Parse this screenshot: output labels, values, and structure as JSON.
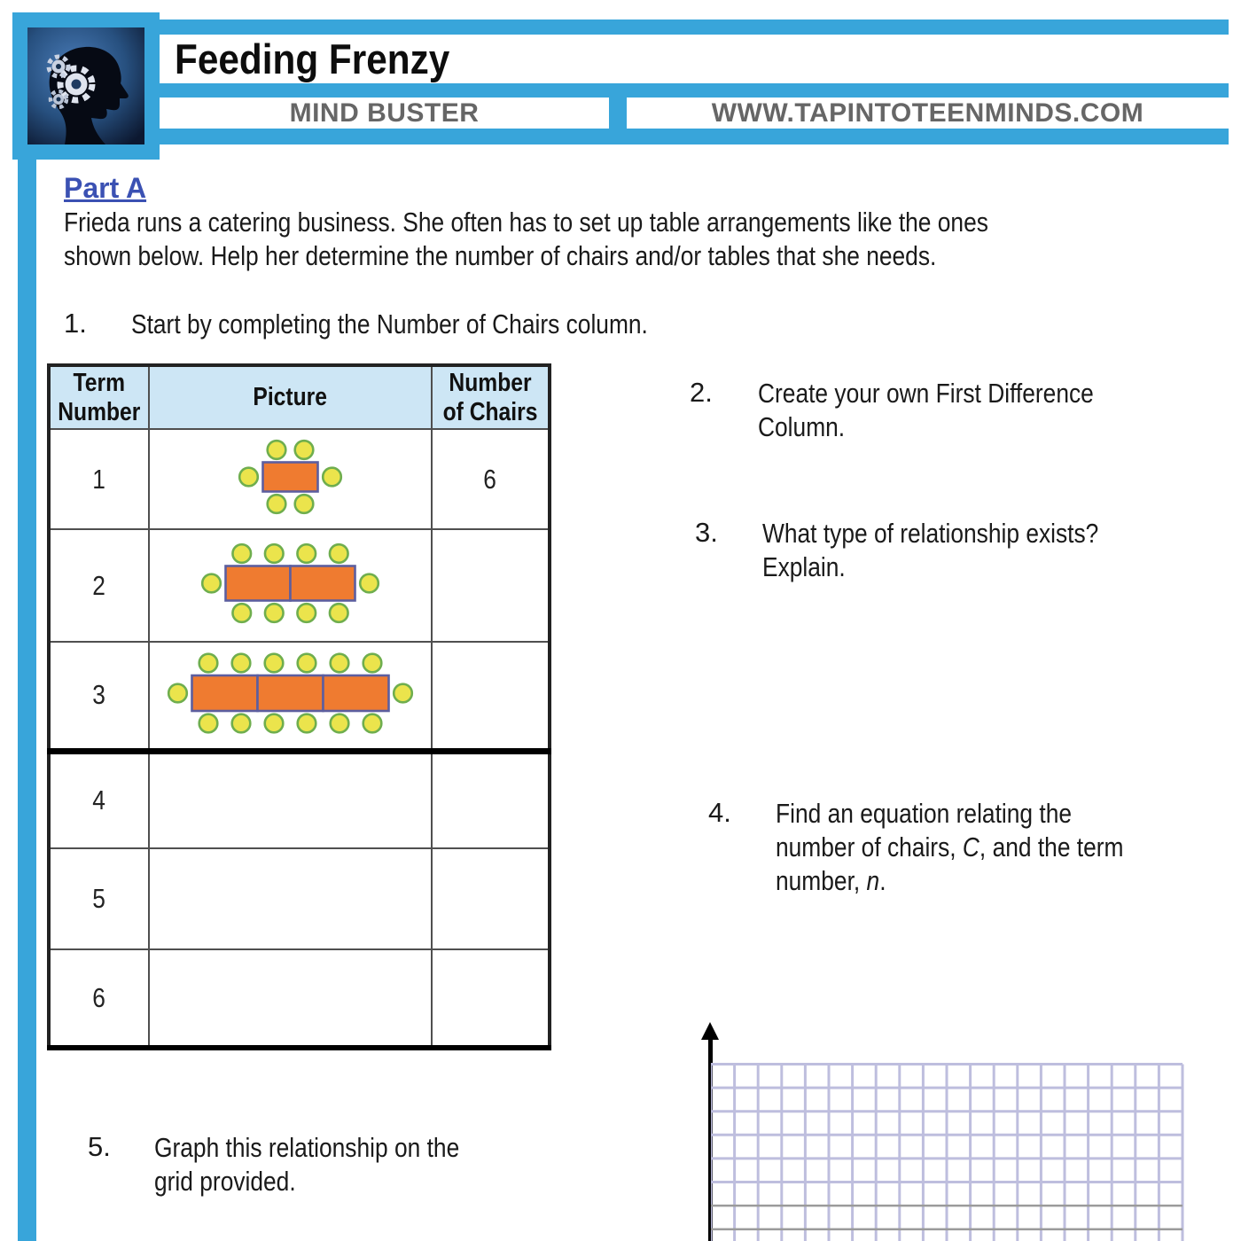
{
  "page": {
    "accent_color": "#38A5DA",
    "background": "#ffffff"
  },
  "header": {
    "title": "Feeding Frenzy",
    "badge_left": "MIND BUSTER",
    "badge_right": "WWW.TAPINTOTEENMINDS.COM",
    "logo": "head-with-gears-logo"
  },
  "part_a": {
    "heading": "Part A",
    "heading_color": "#3B51B3",
    "intro_lines": [
      [
        {
          "t": "Frieda runs a catering business. She often has to set up table arrangements like the ones"
        }
      ],
      [
        {
          "t": "shown below.  Help her determine the number of chairs and/or tables that she needs."
        }
      ]
    ]
  },
  "questions": {
    "q1": {
      "num": "1.",
      "text": "Start by completing the Number of Chairs column."
    },
    "q2": {
      "num": "2.",
      "lines": [
        [
          {
            "t": "Create your own First Difference"
          }
        ],
        [
          {
            "t": "Column."
          }
        ]
      ]
    },
    "q3": {
      "num": "3.",
      "lines": [
        [
          {
            "t": "What type of relationship exists?"
          }
        ],
        [
          {
            "t": "Explain."
          }
        ]
      ]
    },
    "q4": {
      "num": "4.",
      "lines": [
        [
          {
            "t": "Find an equation relating the"
          }
        ],
        [
          {
            "t": "number of chairs, "
          },
          {
            "t": "C",
            "i": true
          },
          {
            "t": ", and the term"
          }
        ],
        [
          {
            "t": "number, "
          },
          {
            "t": "n",
            "i": true
          },
          {
            "t": "."
          }
        ]
      ]
    },
    "q5": {
      "num": "5.",
      "lines": [
        [
          {
            "t": "Graph this relationship on the"
          }
        ],
        [
          {
            "t": "grid provided."
          }
        ]
      ]
    }
  },
  "table": {
    "headers": [
      "Term Number",
      "Picture",
      "Number of Chairs"
    ],
    "rows": [
      {
        "term": "1",
        "tables": 1,
        "chairs_value": "6",
        "picture_alt": "one table with 6 chairs"
      },
      {
        "term": "2",
        "tables": 2,
        "chairs_value": "",
        "picture_alt": "two joined tables with 10 chairs"
      },
      {
        "term": "3",
        "tables": 3,
        "chairs_value": "",
        "picture_alt": "three joined tables with 14 chairs"
      },
      {
        "term": "4",
        "tables": 0,
        "chairs_value": "",
        "picture_alt": ""
      },
      {
        "term": "5",
        "tables": 0,
        "chairs_value": "",
        "picture_alt": ""
      },
      {
        "term": "6",
        "tables": 0,
        "chairs_value": "",
        "picture_alt": ""
      }
    ],
    "picture_colors": {
      "table_fill": "#EF7B30",
      "table_stroke": "#5C5E9F",
      "chair_fill": "#EBE44C",
      "chair_stroke": "#6FAE4E",
      "header_bg": "#CDE6F5"
    }
  },
  "graph": {
    "cols": 20,
    "rows": 8,
    "cell": 26.6,
    "line_color": "#BEBEDE",
    "gray_line_color": "#9B9B9B",
    "gray_row_indices": [
      6,
      7
    ],
    "axis_color": "#000000"
  }
}
